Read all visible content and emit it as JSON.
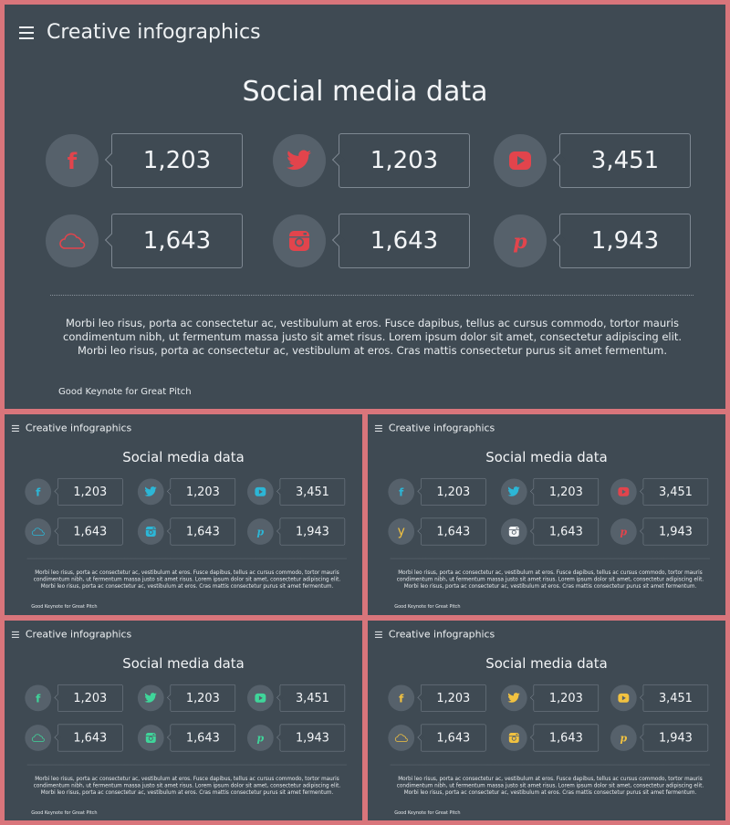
{
  "header_title": "Creative infographics",
  "slide_title": "Social media data",
  "metrics": [
    {
      "icon": "facebook-icon",
      "value": "1,203"
    },
    {
      "icon": "twitter-icon",
      "value": "1,203"
    },
    {
      "icon": "youtube-icon",
      "value": "3,451"
    },
    {
      "icon": "cloud-icon",
      "value": "1,643"
    },
    {
      "icon": "instagram-icon",
      "value": "1,643"
    },
    {
      "icon": "pinterest-icon",
      "value": "1,943"
    }
  ],
  "body_text": "Morbi leo risus, porta ac consectetur ac, vestibulum at eros. Fusce dapibus, tellus ac cursus commodo, tortor mauris condimentum nibh, ut fermentum massa justo sit amet risus. Lorem ipsum dolor sit amet, consectetur adipiscing elit. Morbi leo risus, porta ac consectetur ac, vestibulum at eros. Cras mattis consectetur purus sit amet fermentum.",
  "footer": "Good Keynote for Great Pitch",
  "variant_cloud_glyph": "y",
  "variant_colors": {
    "main": "#e2444c",
    "variant1": "#2cb6d6",
    "variant2_facebook": "#2cb6d6",
    "variant2_twitter": "#2cb6d6",
    "variant2_youtube": "#e2444c",
    "variant2_cloud": "#f2c240",
    "variant2_instagram": "#f3f5f7",
    "variant2_pinterest": "#e2444c",
    "variant3": "#3fd59a",
    "variant4": "#f2c240"
  }
}
